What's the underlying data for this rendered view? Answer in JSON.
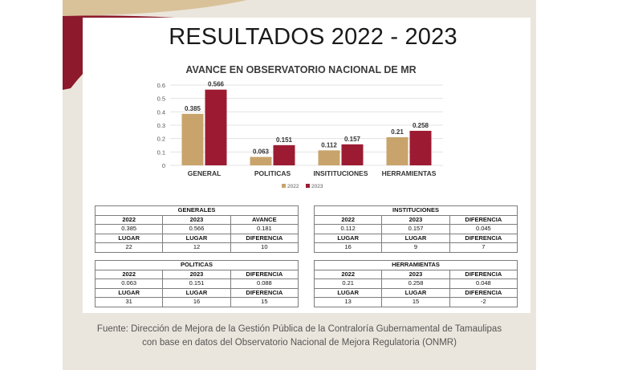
{
  "title": "RESULTADOS 2022 - 2023",
  "colors": {
    "y2022": "#c8a46c",
    "y2023": "#9c1b32",
    "maroon": "#8c1a2c",
    "gold": "#d9c29a"
  },
  "chart_data": {
    "type": "bar",
    "title": "AVANCE EN OBSERVATORIO NACIONAL DE MR",
    "categories": [
      "GENERAL",
      "POLITICAS",
      "INSITITUCIONES",
      "HERRAMIENTAS"
    ],
    "series": [
      {
        "name": "2022",
        "values": [
          0.385,
          0.063,
          0.112,
          0.21
        ],
        "labels": [
          "0.385",
          "0.063",
          "0.112",
          "0.21"
        ]
      },
      {
        "name": "2023",
        "values": [
          0.566,
          0.151,
          0.157,
          0.258
        ],
        "labels": [
          "0.566",
          "0.151",
          "0.157",
          "0.258"
        ]
      }
    ],
    "ylim": [
      0,
      0.6
    ],
    "yticks": [
      "0",
      "0.1",
      "0.2",
      "0.3",
      "0.4",
      "0.5",
      "0.6"
    ],
    "grid": true,
    "legend": "bottom"
  },
  "tables": [
    {
      "title": "GENERALES",
      "row1": [
        "2022",
        "2023",
        "AVANCE"
      ],
      "row2": [
        "0.385",
        "0.566",
        "0.181"
      ],
      "row3": [
        "LUGAR",
        "LUGAR",
        "DIFERENCIA"
      ],
      "row4": [
        "22",
        "12",
        "10"
      ]
    },
    {
      "title": "INSTITUCIONES",
      "row1": [
        "2022",
        "2023",
        "DIFERENCIA"
      ],
      "row2": [
        "0.112",
        "0.157",
        "0.045"
      ],
      "row3": [
        "LUGAR",
        "LUGAR",
        "DIFERENCIA"
      ],
      "row4": [
        "16",
        "9",
        "7"
      ]
    },
    {
      "title": "POLITICAS",
      "row1": [
        "2022",
        "2023",
        "DIFERENCIA"
      ],
      "row2": [
        "0.063",
        "0.151",
        "0.088"
      ],
      "row3": [
        "LUGAR",
        "LUGAR",
        "DIFERENCIA"
      ],
      "row4": [
        "31",
        "16",
        "15"
      ]
    },
    {
      "title": "HERRAMIENTAS",
      "row1": [
        "2022",
        "2023",
        "DIFERENCIA"
      ],
      "row2": [
        "0.21",
        "0.258",
        "0.048"
      ],
      "row3": [
        "LUGAR",
        "LUGAR",
        "DIFERENCIA"
      ],
      "row4": [
        "13",
        "15",
        "-2"
      ]
    }
  ],
  "source_line1": "Fuente: Dirección de Mejora de la Gestión Pública de la Contraloría Gubernamental de Tamaulipas",
  "source_line2": "con base en datos del Observatorio Nacional de Mejora Regulatoria (ONMR)"
}
